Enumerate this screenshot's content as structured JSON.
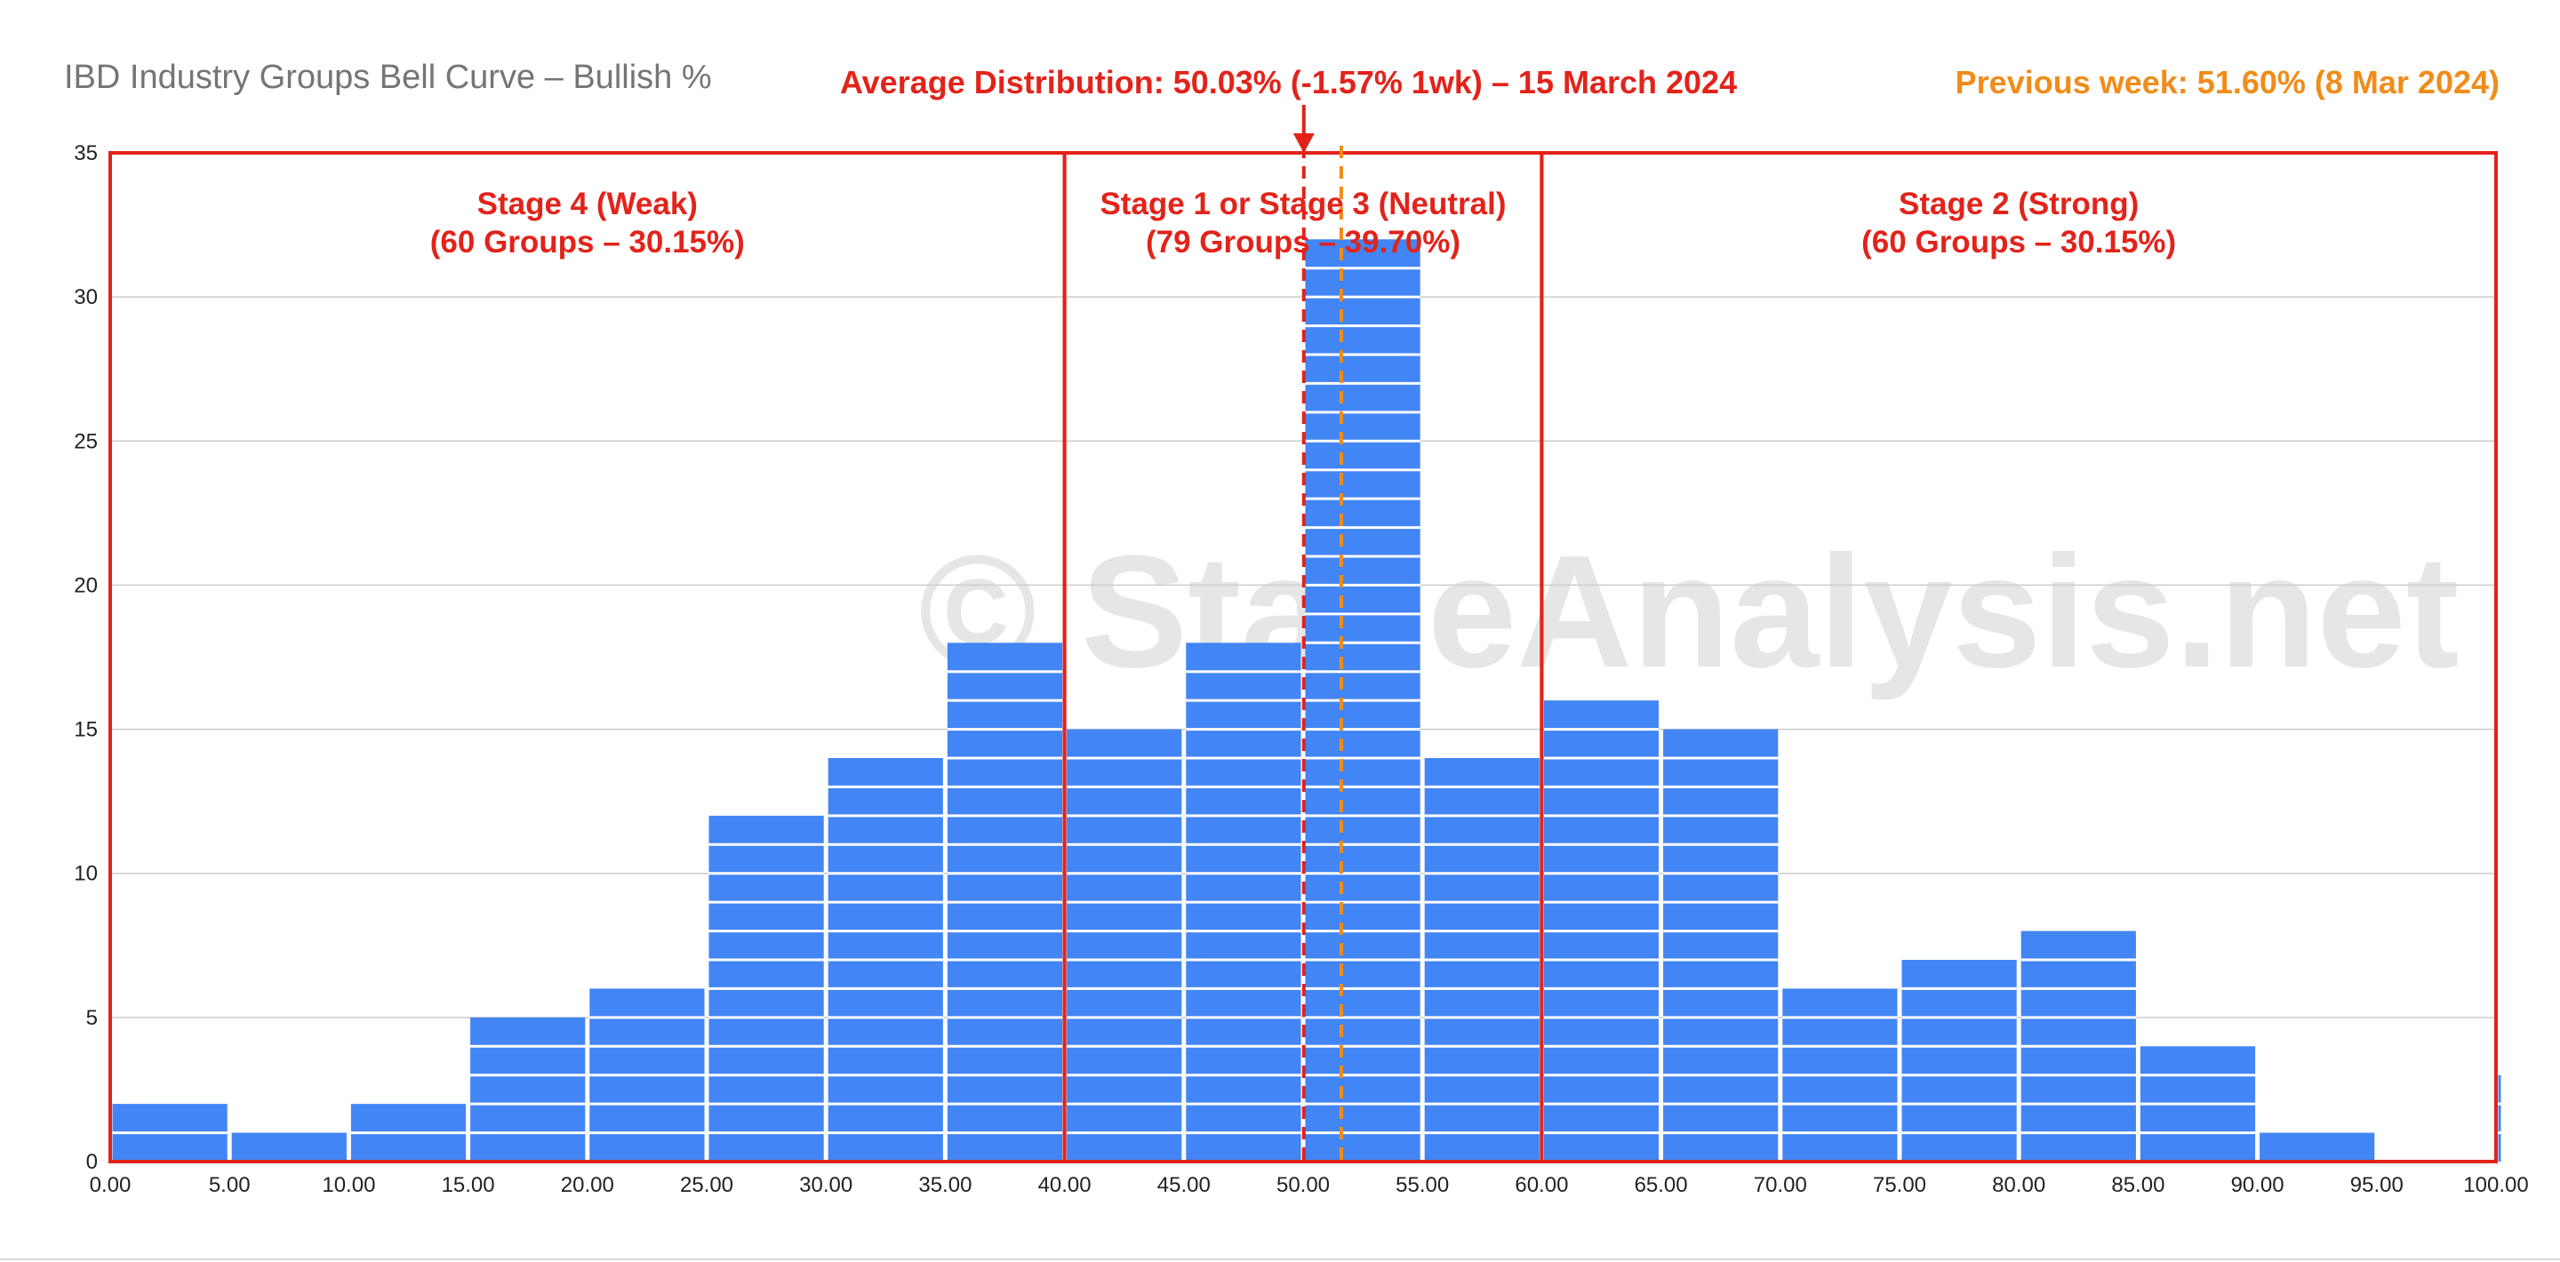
{
  "chart_data": {
    "type": "bar",
    "title": "IBD Industry Groups Bell Curve – Bullish %",
    "average_label": "Average Distribution: 50.03% (-1.57% 1wk) – 15 March 2024",
    "previous_label": "Previous week: 51.60% (8 Mar 2024)",
    "average_value": 50.03,
    "previous_value": 51.6,
    "watermark": "© StageAnalysis.net",
    "x_ticks": [
      "0.00",
      "5.00",
      "10.00",
      "15.00",
      "20.00",
      "25.00",
      "30.00",
      "35.00",
      "40.00",
      "45.00",
      "50.00",
      "55.00",
      "60.00",
      "65.00",
      "70.00",
      "75.00",
      "80.00",
      "85.00",
      "90.00",
      "95.00",
      "100.00"
    ],
    "y_ticks": [
      "0",
      "5",
      "10",
      "15",
      "20",
      "25",
      "30",
      "35"
    ],
    "xlim": [
      0,
      100
    ],
    "ylim": [
      0,
      35
    ],
    "bin_width": 5,
    "bins": [
      {
        "x0": 0,
        "x1": 5,
        "count": 2
      },
      {
        "x0": 5,
        "x1": 10,
        "count": 1
      },
      {
        "x0": 10,
        "x1": 15,
        "count": 2
      },
      {
        "x0": 15,
        "x1": 20,
        "count": 5
      },
      {
        "x0": 20,
        "x1": 25,
        "count": 6
      },
      {
        "x0": 25,
        "x1": 30,
        "count": 12
      },
      {
        "x0": 30,
        "x1": 35,
        "count": 14
      },
      {
        "x0": 35,
        "x1": 40,
        "count": 18
      },
      {
        "x0": 40,
        "x1": 45,
        "count": 15
      },
      {
        "x0": 45,
        "x1": 50,
        "count": 18
      },
      {
        "x0": 50,
        "x1": 55,
        "count": 32
      },
      {
        "x0": 55,
        "x1": 60,
        "count": 14
      },
      {
        "x0": 60,
        "x1": 65,
        "count": 16
      },
      {
        "x0": 65,
        "x1": 70,
        "count": 15
      },
      {
        "x0": 70,
        "x1": 75,
        "count": 6
      },
      {
        "x0": 75,
        "x1": 80,
        "count": 7
      },
      {
        "x0": 80,
        "x1": 85,
        "count": 8
      },
      {
        "x0": 85,
        "x1": 90,
        "count": 4
      },
      {
        "x0": 90,
        "x1": 95,
        "count": 1
      },
      {
        "x0": 95,
        "x1": 100,
        "count": 0
      },
      {
        "x0": 100,
        "x1": 105,
        "count": 3
      }
    ],
    "zones": [
      {
        "name": "Stage 4 (Weak)",
        "detail": "(60 Groups – 30.15%)",
        "x0": 0,
        "x1": 40
      },
      {
        "name": "Stage 1 or Stage 3 (Neutral)",
        "detail": "(79 Groups – 39.70%)",
        "x0": 40,
        "x1": 60
      },
      {
        "name": "Stage 2 (Strong)",
        "detail": "(60 Groups – 30.15%)",
        "x0": 60,
        "x1": 100
      }
    ],
    "grid": true,
    "colors": {
      "bar": "#4285f4",
      "zone": "#e2231a",
      "average_line": "#e2231a",
      "previous_line": "#f08c1a",
      "grid": "#cccccc",
      "watermark": "#e6e6e6"
    }
  }
}
